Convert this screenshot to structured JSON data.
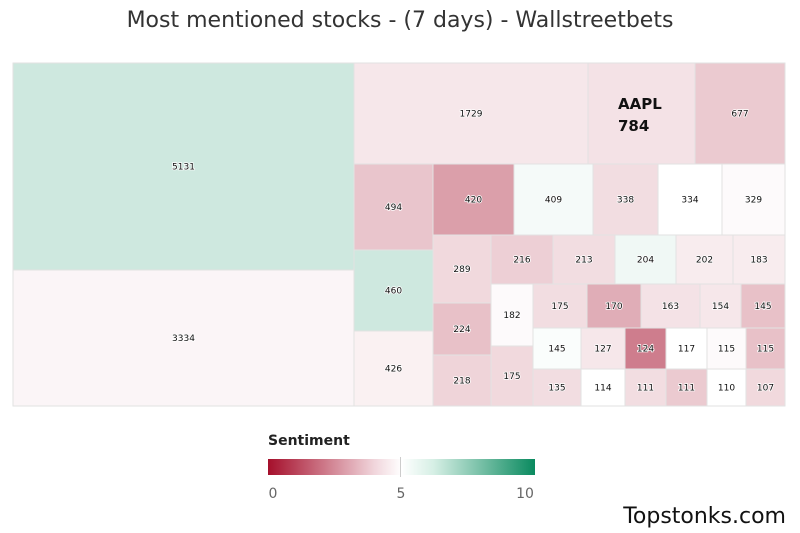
{
  "chart_data": {
    "type": "heatmap",
    "title": "Most mentioned stocks - (7 days) - Wallstreetbets",
    "color_scale": {
      "min": 0,
      "mid": 5,
      "max": 10,
      "min_color": "#a50f2b",
      "mid_color": "#ffffff",
      "max_color": "#0a8a5f"
    },
    "legend_title": "Sentiment",
    "legend_ticks": [
      "0",
      "5",
      "10"
    ],
    "tiles": [
      {
        "label": "",
        "value": 5131,
        "sentiment": 6.0
      },
      {
        "label": "",
        "value": 3334,
        "sentiment": 4.8
      },
      {
        "label": "",
        "value": 1729,
        "sentiment": 4.5
      },
      {
        "label": "AAPL",
        "value": 784,
        "sentiment": 4.4
      },
      {
        "label": "",
        "value": 677,
        "sentiment": 3.9
      },
      {
        "label": "",
        "value": 494,
        "sentiment": 3.8
      },
      {
        "label": "",
        "value": 420,
        "sentiment": 3.0
      },
      {
        "label": "",
        "value": 409,
        "sentiment": 5.2
      },
      {
        "label": "",
        "value": 338,
        "sentiment": 4.3
      },
      {
        "label": "",
        "value": 334,
        "sentiment": 5.0
      },
      {
        "label": "",
        "value": 329,
        "sentiment": 4.9
      },
      {
        "label": "",
        "value": 460,
        "sentiment": 6.0
      },
      {
        "label": "",
        "value": 426,
        "sentiment": 4.7
      },
      {
        "label": "",
        "value": 289,
        "sentiment": 4.2
      },
      {
        "label": "",
        "value": 224,
        "sentiment": 3.7
      },
      {
        "label": "",
        "value": 218,
        "sentiment": 4.1
      },
      {
        "label": "",
        "value": 216,
        "sentiment": 4.0
      },
      {
        "label": "",
        "value": 213,
        "sentiment": 4.3
      },
      {
        "label": "",
        "value": 204,
        "sentiment": 5.3
      },
      {
        "label": "",
        "value": 202,
        "sentiment": 4.6
      },
      {
        "label": "",
        "value": 183,
        "sentiment": 4.6
      },
      {
        "label": "",
        "value": 182,
        "sentiment": 4.9
      },
      {
        "label": "",
        "value": 175,
        "sentiment": 4.2
      },
      {
        "label": "",
        "value": 175,
        "sentiment": 4.3
      },
      {
        "label": "",
        "value": 170,
        "sentiment": 3.3
      },
      {
        "label": "",
        "value": 163,
        "sentiment": 4.4
      },
      {
        "label": "",
        "value": 154,
        "sentiment": 4.5
      },
      {
        "label": "",
        "value": 145,
        "sentiment": 3.7
      },
      {
        "label": "",
        "value": 145,
        "sentiment": 5.1
      },
      {
        "label": "",
        "value": 127,
        "sentiment": 4.5
      },
      {
        "label": "",
        "value": 124,
        "sentiment": 2.3
      },
      {
        "label": "",
        "value": 117,
        "sentiment": 5.0
      },
      {
        "label": "",
        "value": 115,
        "sentiment": 4.9
      },
      {
        "label": "",
        "value": 115,
        "sentiment": 3.7
      },
      {
        "label": "",
        "value": 135,
        "sentiment": 4.3
      },
      {
        "label": "",
        "value": 114,
        "sentiment": 5.0
      },
      {
        "label": "",
        "value": 111,
        "sentiment": 4.3
      },
      {
        "label": "",
        "value": 111,
        "sentiment": 3.9
      },
      {
        "label": "",
        "value": 110,
        "sentiment": 5.0
      },
      {
        "label": "",
        "value": 107,
        "sentiment": 4.2
      }
    ]
  },
  "brand": "Topstonks.com"
}
